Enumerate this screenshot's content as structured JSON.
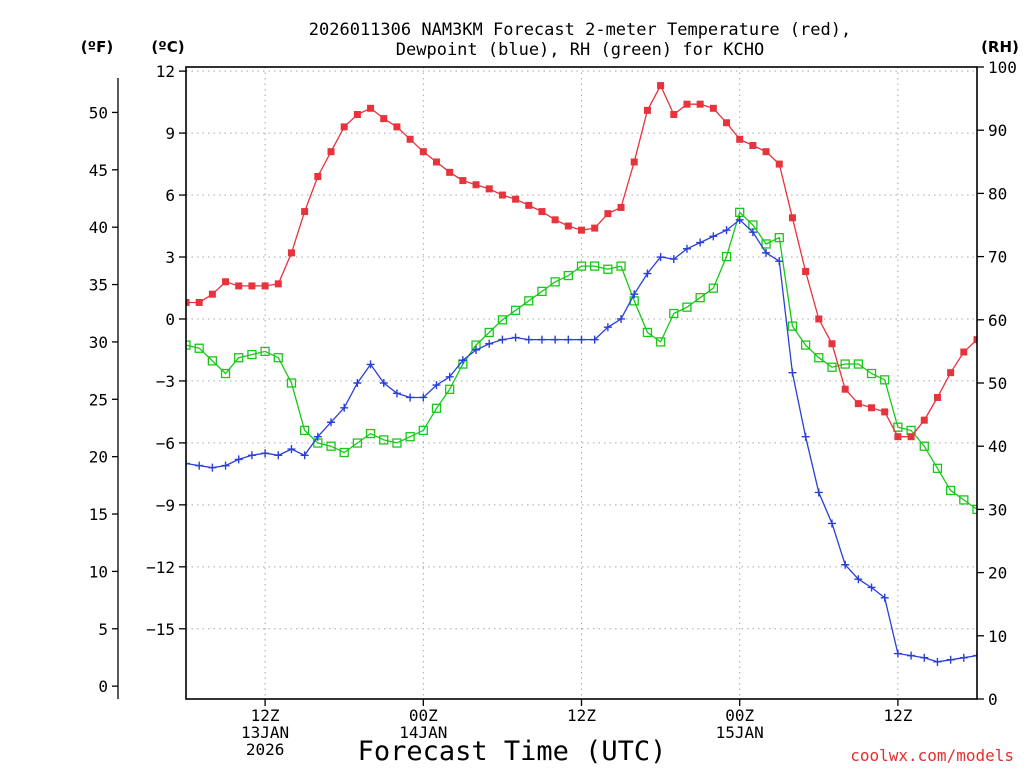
{
  "chart_data": {
    "type": "line",
    "title_line1": "2026011306 NAM3KM Forecast 2-meter Temperature (red),",
    "title_line2": "Dewpoint (blue), RH (green) for KCHO",
    "left_outer_label": "(ºF)",
    "left_inner_label": "(ºC)",
    "right_label": "(RH)",
    "xlabel": "Forecast Time (UTC)",
    "watermark": "coolwx.com/models",
    "x_unit": "forecast hour",
    "xlim": [
      0,
      60
    ],
    "ylim_c": [
      -18.4,
      12.2
    ],
    "ylim_rh": [
      0,
      100
    ],
    "f_ticks": [
      0,
      5,
      10,
      15,
      20,
      25,
      30,
      35,
      40,
      45,
      50
    ],
    "c_ticks": [
      12,
      9,
      6,
      3,
      0,
      -3,
      -6,
      -9,
      -12,
      -15
    ],
    "c_tick_labels": [
      "12",
      "9",
      "6",
      "3",
      "0",
      "−3",
      "−6",
      "−9",
      "−12",
      "−15"
    ],
    "rh_ticks": [
      0,
      10,
      20,
      30,
      40,
      50,
      60,
      70,
      80,
      90,
      100
    ],
    "x_ticks": [
      {
        "hour": 6,
        "lines": [
          "12Z",
          "13JAN",
          "2026"
        ]
      },
      {
        "hour": 18,
        "lines": [
          "00Z",
          "14JAN"
        ]
      },
      {
        "hour": 30,
        "lines": [
          "12Z"
        ]
      },
      {
        "hour": 42,
        "lines": [
          "00Z",
          "15JAN"
        ]
      },
      {
        "hour": 54,
        "lines": [
          "12Z"
        ]
      }
    ],
    "colors": {
      "temperature": "#e8323c",
      "dewpoint": "#2a3fd6",
      "rh": "#18c818",
      "grid": "#a8a8a8"
    },
    "series": [
      {
        "name": "Temperature",
        "unit": "C",
        "marker": "filled-square",
        "values": [
          0.8,
          0.8,
          1.2,
          1.8,
          1.6,
          1.6,
          1.6,
          1.7,
          3.2,
          5.2,
          6.9,
          8.1,
          9.3,
          9.9,
          10.2,
          9.7,
          9.3,
          8.7,
          8.1,
          7.6,
          7.1,
          6.7,
          6.5,
          6.3,
          6.0,
          5.8,
          5.5,
          5.2,
          4.8,
          4.5,
          4.3,
          4.4,
          5.1,
          5.4,
          7.6,
          10.1,
          11.3,
          9.9,
          10.4,
          10.4,
          10.2,
          9.5,
          8.7,
          8.4,
          8.1,
          7.5,
          4.9,
          2.3,
          0.0,
          -1.2,
          -3.4,
          -4.1,
          -4.3,
          -4.5,
          -5.7,
          -5.7,
          -4.9,
          -3.8,
          -2.6,
          -1.6,
          -1.0
        ]
      },
      {
        "name": "Dewpoint",
        "unit": "C",
        "marker": "plus",
        "values": [
          -7.0,
          -7.1,
          -7.2,
          -7.1,
          -6.8,
          -6.6,
          -6.5,
          -6.6,
          -6.3,
          -6.6,
          -5.7,
          -5.0,
          -4.3,
          -3.1,
          -2.2,
          -3.1,
          -3.6,
          -3.8,
          -3.8,
          -3.2,
          -2.8,
          -2.0,
          -1.5,
          -1.2,
          -1.0,
          -0.9,
          -1.0,
          -1.0,
          -1.0,
          -1.0,
          -1.0,
          -1.0,
          -0.4,
          0.0,
          1.2,
          2.2,
          3.0,
          2.9,
          3.4,
          3.7,
          4.0,
          4.3,
          4.8,
          4.2,
          3.2,
          2.8,
          -2.6,
          -5.7,
          -8.4,
          -9.9,
          -11.9,
          -12.6,
          -13.0,
          -13.5,
          -16.2,
          -16.3,
          -16.4,
          -16.6,
          -16.5,
          -16.4,
          -16.3
        ]
      },
      {
        "name": "RH",
        "unit": "%",
        "marker": "open-square",
        "values": [
          56,
          55.5,
          53.5,
          51.5,
          54,
          54.5,
          55,
          54,
          50,
          42.5,
          40.5,
          40,
          39,
          40.5,
          42,
          41,
          40.5,
          41.5,
          42.5,
          46,
          49,
          53,
          56,
          58,
          60,
          61.5,
          63,
          64.5,
          66,
          67,
          68.5,
          68.5,
          68,
          68.5,
          63,
          58,
          56.5,
          61,
          62,
          63.5,
          65,
          70,
          77,
          75,
          72,
          73,
          59,
          56,
          54,
          52.5,
          53,
          53,
          51.5,
          50.5,
          43,
          42.5,
          40,
          36.5,
          33,
          31.5,
          30
        ]
      }
    ]
  }
}
